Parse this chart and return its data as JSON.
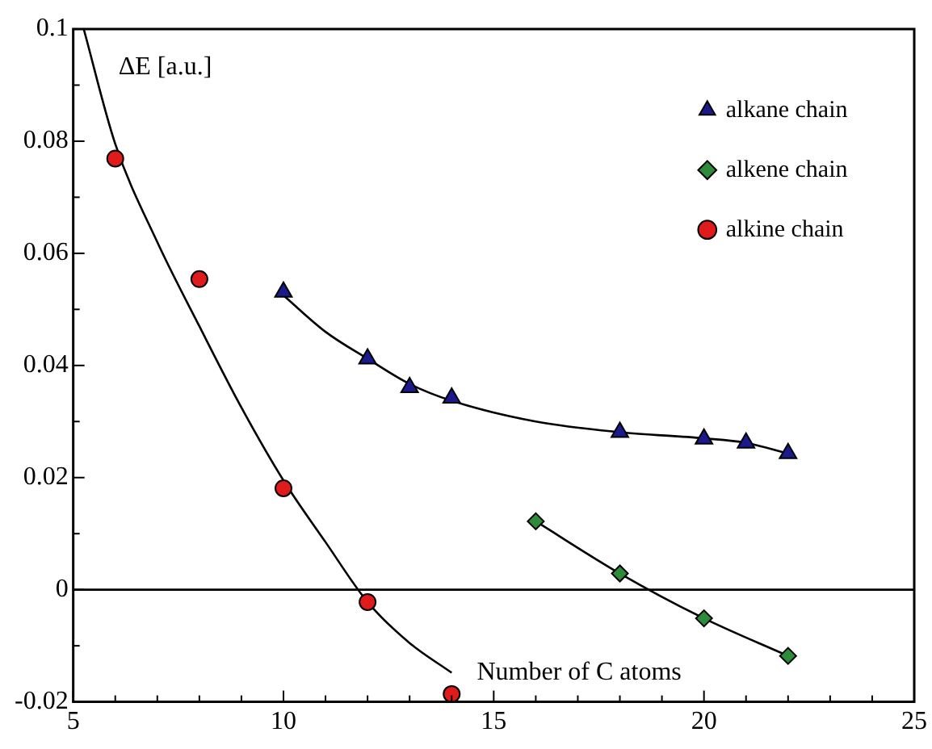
{
  "chart_data": {
    "type": "scatter",
    "xlabel": "Number of C atoms",
    "ylabel": "ΔE [a.u.]",
    "xlim": [
      5,
      25
    ],
    "ylim": [
      -0.02,
      0.1
    ],
    "xticks": [
      5,
      {
        "value": 6,
        "label": null
      },
      {
        "value": 7,
        "label": null
      },
      {
        "value": 8,
        "label": null
      },
      {
        "value": 9,
        "label": null
      },
      10,
      {
        "value": 11,
        "label": null
      },
      {
        "value": 12,
        "label": null
      },
      {
        "value": 13,
        "label": null
      },
      {
        "value": 14,
        "label": null
      },
      15,
      {
        "value": 16,
        "label": null
      },
      {
        "value": 17,
        "label": null
      },
      {
        "value": 18,
        "label": null
      },
      {
        "value": 19,
        "label": null
      },
      20,
      {
        "value": 21,
        "label": null
      },
      {
        "value": 22,
        "label": null
      },
      {
        "value": 23,
        "label": null
      },
      {
        "value": 24,
        "label": null
      },
      25
    ],
    "yticks": [
      -0.02,
      {
        "value": -0.01,
        "label": null
      },
      0,
      {
        "value": 0.01,
        "label": null
      },
      0.02,
      {
        "value": 0.03,
        "label": null
      },
      0.04,
      {
        "value": 0.05,
        "label": null
      },
      0.06,
      {
        "value": 0.07,
        "label": null
      },
      0.08,
      {
        "value": 0.09,
        "label": null
      },
      0.1
    ],
    "legend": "top right",
    "ref_lines": [
      {
        "axis": "y",
        "value": 0,
        "color": "#000000"
      }
    ],
    "series": [
      {
        "name": "alkane chain",
        "color": "#1a1a8c",
        "marker": "triangle",
        "x": [
          10,
          12,
          13,
          14,
          18,
          20,
          21,
          22
        ],
        "values": [
          0.0531,
          0.0412,
          0.0361,
          0.0342,
          0.0281,
          0.0269,
          0.0262,
          0.0243
        ]
      },
      {
        "name": "alkene chain",
        "color": "#2e8b3a",
        "marker": "diamond",
        "x": [
          16,
          18,
          20,
          22
        ],
        "values": [
          0.0122,
          0.0029,
          -0.0051,
          -0.0118
        ]
      },
      {
        "name": "alkine chain",
        "color": "#e01b1b",
        "marker": "circle",
        "x": [
          6,
          8,
          10,
          12,
          14
        ],
        "values": [
          0.0769,
          0.0554,
          0.0181,
          -0.0022,
          -0.0186
        ]
      },
      {
        "type": "line",
        "color": "#000000",
        "marker": "none",
        "x": [
          10,
          11,
          12,
          13,
          14,
          16,
          18,
          20,
          21,
          22
        ],
        "values": [
          0.0525,
          0.046,
          0.0412,
          0.0367,
          0.0337,
          0.03,
          0.0281,
          0.027,
          0.0262,
          0.0243
        ]
      },
      {
        "type": "line",
        "color": "#000000",
        "marker": "none",
        "x": [
          16,
          18,
          20,
          22
        ],
        "values": [
          0.0122,
          0.0029,
          -0.0051,
          -0.0118
        ]
      },
      {
        "type": "line",
        "color": "#000000",
        "marker": "none",
        "x": [
          5.25,
          6,
          7,
          8,
          9,
          10,
          11,
          12,
          13,
          14
        ],
        "values": [
          0.1,
          0.0795,
          0.062,
          0.047,
          0.0325,
          0.0195,
          0.0085,
          -0.0022,
          -0.0095,
          -0.0148
        ]
      }
    ]
  }
}
